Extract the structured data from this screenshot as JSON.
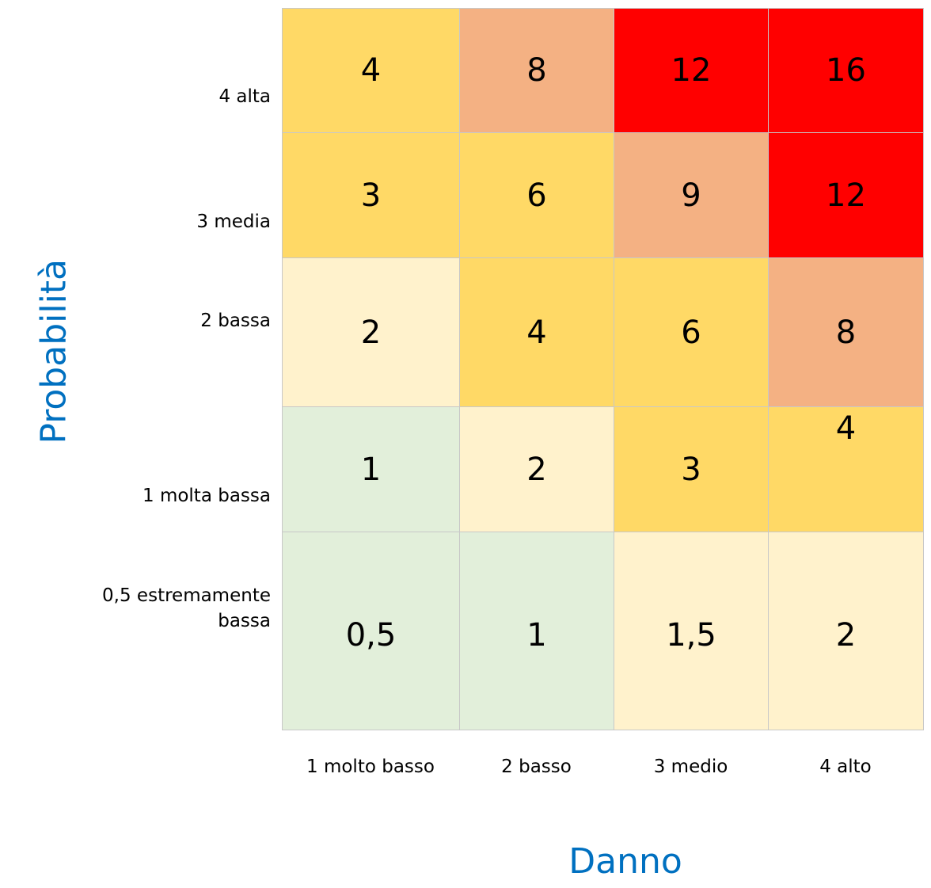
{
  "chart_data": {
    "type": "heatmap",
    "xlabel": "Danno",
    "ylabel": "Probabilità",
    "x_categories": [
      "1 molto basso",
      "2 basso",
      "3 medio",
      "4 alto"
    ],
    "y_categories": [
      "4 alta",
      "3 media",
      "2 bassa",
      "1 molta bassa",
      "0,5 estremamente bassa"
    ],
    "values": [
      [
        "4",
        "8",
        "12",
        "16"
      ],
      [
        "3",
        "6",
        "9",
        "12"
      ],
      [
        "2",
        "4",
        "6",
        "8"
      ],
      [
        "1",
        "2",
        "3",
        "4"
      ],
      [
        "0,5",
        "1",
        "1,5",
        "2"
      ]
    ],
    "colors": [
      [
        "#FFD966",
        "#F4B183",
        "#FF0000",
        "#FF0000"
      ],
      [
        "#FFD966",
        "#FFD966",
        "#F4B183",
        "#FF0000"
      ],
      [
        "#FFF2CC",
        "#FFD966",
        "#FFD966",
        "#F4B183"
      ],
      [
        "#E2EFDA",
        "#FFF2CC",
        "#FFD966",
        "#FFD966"
      ],
      [
        "#E2EFDA",
        "#E2EFDA",
        "#FFF2CC",
        "#FFF2CC"
      ]
    ],
    "title_color": "#0070C0"
  }
}
